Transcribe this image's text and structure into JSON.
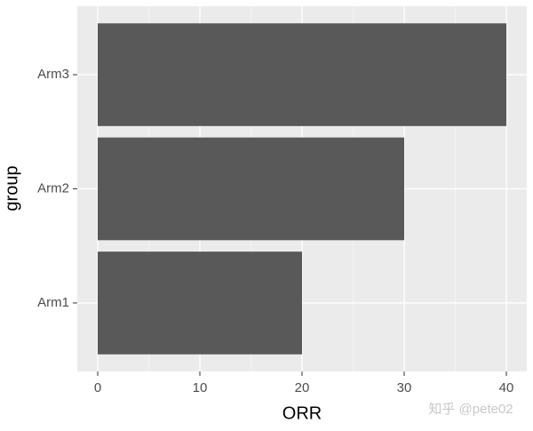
{
  "chart_data": {
    "type": "bar",
    "orientation": "horizontal",
    "x_label": "ORR",
    "y_label": "group",
    "categories": [
      "Arm1",
      "Arm2",
      "Arm3"
    ],
    "values": [
      20,
      30,
      40
    ],
    "color": "#595959",
    "xlim": [
      -2,
      42
    ],
    "xticks": [
      0,
      10,
      20,
      30,
      40
    ],
    "grid": true,
    "minor_grid": true,
    "watermark": "知乎 @pete02"
  }
}
